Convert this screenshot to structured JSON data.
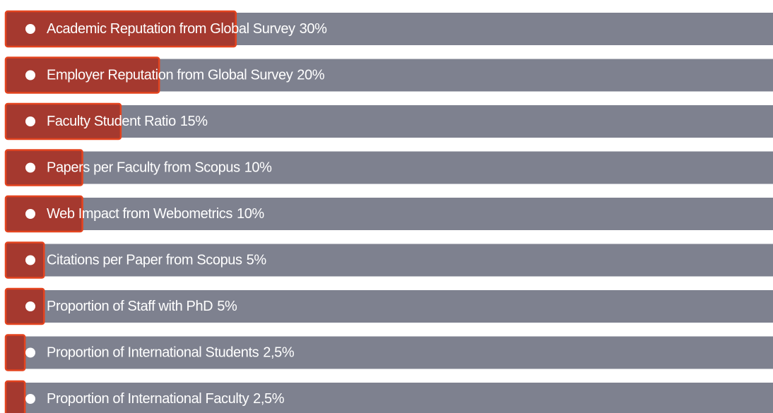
{
  "chart_data": {
    "type": "bar",
    "categories": [
      "Academic Reputation from Global Survey",
      "Employer Reputation from Global Survey",
      "Faculty Student Ratio",
      "Papers per Faculty from Scopus",
      "Web Impact from Webometrics",
      "Citations per Paper from Scopus",
      "Proportion of Staff with PhD",
      "Proportion of International Students",
      "Proportion of International Faculty"
    ],
    "values": [
      30,
      20,
      15,
      10,
      10,
      5,
      5,
      2.5,
      2.5
    ],
    "value_labels": [
      "30%",
      "20%",
      "15%",
      "10%",
      "10%",
      "5%",
      "5%",
      "2,5%",
      "2,5%"
    ],
    "xlim": [
      0,
      100
    ],
    "color": "#a5392f",
    "track_color": "#7e818f"
  }
}
